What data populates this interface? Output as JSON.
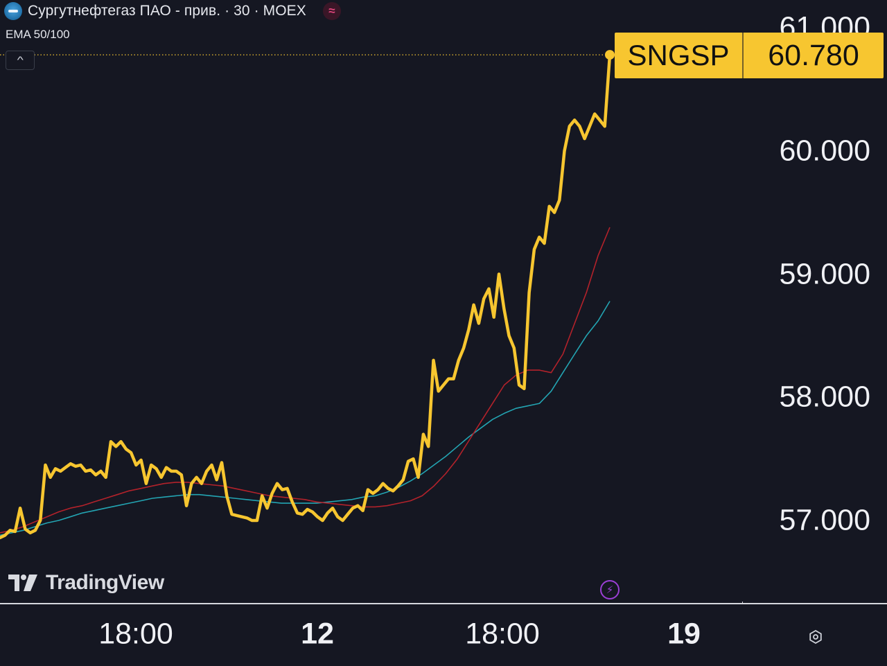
{
  "header": {
    "title": "Сургутнефтегаз ПАО - прив. · 30 · MOEX",
    "indicator": "EMA 50/100"
  },
  "branding": {
    "logo_text": "TradingView"
  },
  "price_tag": {
    "symbol": "SNGSP",
    "value": "60.780"
  },
  "colors": {
    "background": "#151722",
    "price_line": "#f7c630",
    "ema50": "#b3222b",
    "ema100": "#23a5b3"
  },
  "icons": {
    "symbol_logo": "surgutneftegas-logo-icon",
    "compare": "wave-icon",
    "collapse": "chevron-up-icon",
    "realtime": "lightning-icon",
    "settings": "gear-icon"
  },
  "chart_data": {
    "type": "line",
    "ylim": [
      56.6,
      61.2
    ],
    "yticks": [
      "61.000",
      "60.000",
      "59.000",
      "58.000",
      "57.000"
    ],
    "xticks": [
      "18:00",
      "12",
      "18:00",
      "19"
    ],
    "series": [
      {
        "name": "SNGSP",
        "values": [
          56.86,
          56.88,
          56.92,
          56.91,
          57.1,
          56.93,
          56.9,
          56.92,
          57.0,
          57.45,
          57.35,
          57.42,
          57.4,
          57.43,
          57.46,
          57.44,
          57.45,
          57.4,
          57.41,
          57.37,
          57.4,
          57.35,
          57.64,
          57.6,
          57.64,
          57.58,
          57.55,
          57.45,
          57.49,
          57.3,
          57.45,
          57.42,
          57.35,
          57.43,
          57.4,
          57.4,
          57.37,
          57.12,
          57.3,
          57.35,
          57.3,
          57.4,
          57.45,
          57.33,
          57.47,
          57.2,
          57.05,
          57.04,
          57.03,
          57.02,
          57.0,
          57.0,
          57.2,
          57.1,
          57.22,
          57.3,
          57.25,
          57.26,
          57.15,
          57.06,
          57.05,
          57.09,
          57.07,
          57.03,
          57.0,
          57.06,
          57.1,
          57.03,
          57.0,
          57.05,
          57.1,
          57.12,
          57.08,
          57.25,
          57.22,
          57.25,
          57.3,
          57.26,
          57.24,
          57.28,
          57.33,
          57.48,
          57.5,
          57.35,
          57.7,
          57.6,
          58.3,
          58.05,
          58.1,
          58.15,
          58.15,
          58.3,
          58.4,
          58.55,
          58.75,
          58.6,
          58.8,
          58.88,
          58.65,
          59.0,
          58.72,
          58.5,
          58.4,
          58.1,
          58.07,
          58.85,
          59.2,
          59.3,
          59.25,
          59.55,
          59.5,
          59.6,
          60.0,
          60.2,
          60.25,
          60.2,
          60.1,
          60.2,
          60.3,
          60.25,
          60.2,
          60.78
        ]
      },
      {
        "name": "EMA 50",
        "values": [
          56.9,
          56.92,
          56.95,
          56.99,
          57.03,
          57.07,
          57.1,
          57.12,
          57.15,
          57.18,
          57.21,
          57.24,
          57.26,
          57.28,
          57.3,
          57.31,
          57.31,
          57.3,
          57.29,
          57.28,
          57.26,
          57.24,
          57.22,
          57.2,
          57.19,
          57.18,
          57.17,
          57.15,
          57.14,
          57.13,
          57.12,
          57.11,
          57.11,
          57.12,
          57.14,
          57.16,
          57.2,
          57.28,
          57.38,
          57.5,
          57.65,
          57.8,
          57.95,
          58.1,
          58.18,
          58.22,
          58.22,
          58.2,
          58.35,
          58.6,
          58.85,
          59.15,
          59.38
        ]
      },
      {
        "name": "EMA 100",
        "values": [
          56.88,
          56.9,
          56.92,
          56.95,
          56.98,
          57.0,
          57.03,
          57.06,
          57.08,
          57.1,
          57.12,
          57.14,
          57.16,
          57.18,
          57.19,
          57.2,
          57.21,
          57.21,
          57.2,
          57.19,
          57.18,
          57.17,
          57.16,
          57.15,
          57.14,
          57.14,
          57.14,
          57.14,
          57.15,
          57.16,
          57.17,
          57.19,
          57.2,
          57.23,
          57.27,
          57.32,
          57.38,
          57.45,
          57.52,
          57.6,
          57.68,
          57.75,
          57.82,
          57.87,
          57.91,
          57.93,
          57.95,
          58.05,
          58.2,
          58.35,
          58.5,
          58.62,
          58.78
        ]
      }
    ]
  }
}
